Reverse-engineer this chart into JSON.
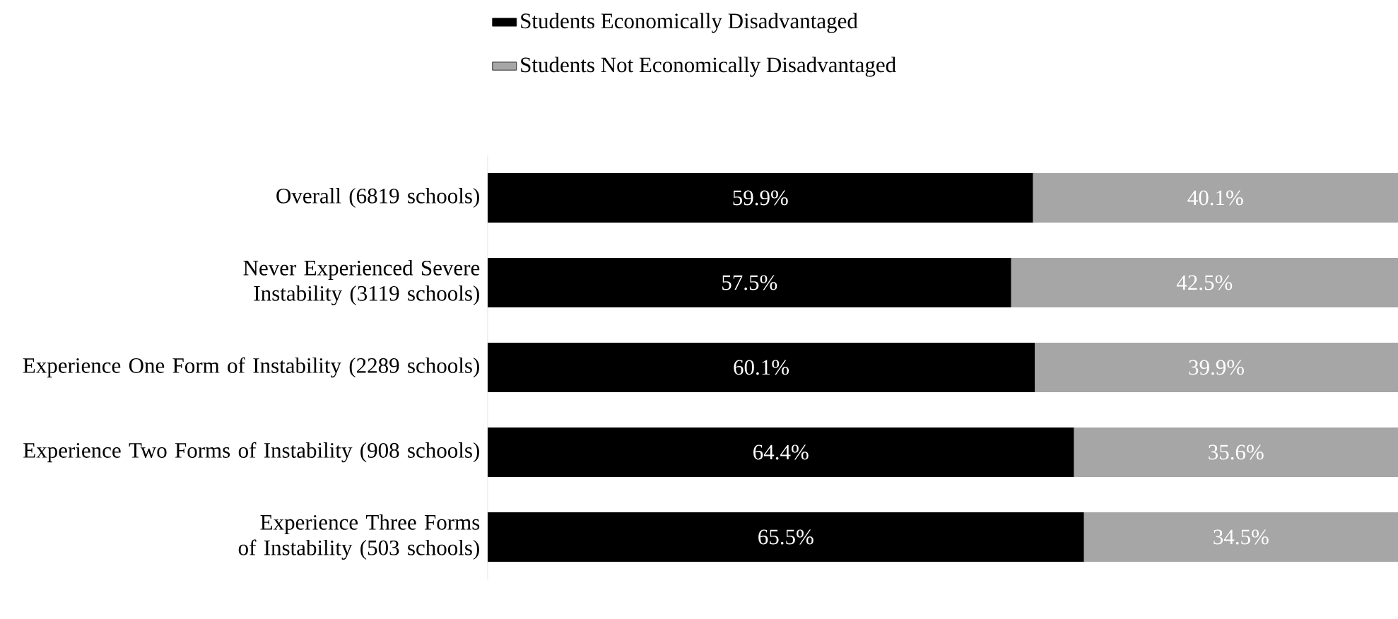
{
  "chart_data": {
    "type": "bar",
    "orientation": "horizontal",
    "stacked": true,
    "categories": [
      "Overall (6819 schools)",
      "Never Experienced Severe Instability (3119 schools)",
      "Experience One Form of Instability (2289 schools)",
      "Experience Two Forms of Instability (908 schools)",
      "Experience Three Forms of Instability (503 schools)"
    ],
    "series": [
      {
        "name": "Students Economically Disadvantaged",
        "color": "#000000",
        "values": [
          59.9,
          57.5,
          60.1,
          64.4,
          65.5
        ],
        "value_labels": [
          "59.9%",
          "57.5%",
          "60.1%",
          "64.4%",
          "65.5%"
        ]
      },
      {
        "name": "Students Not Economically Disadvantaged",
        "color": "#a6a6a6",
        "values": [
          40.1,
          42.5,
          39.9,
          35.6,
          34.5
        ],
        "value_labels": [
          "40.1%",
          "42.5%",
          "39.9%",
          "35.6%",
          "34.5%"
        ]
      }
    ],
    "tick_labels": "y",
    "legend": "top"
  }
}
